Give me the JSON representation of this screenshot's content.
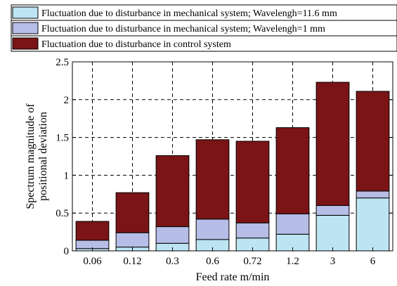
{
  "chart_data": {
    "type": "bar",
    "stacked": true,
    "categories": [
      "0.06",
      "0.12",
      "0.3",
      "0.6",
      "0.72",
      "1.2",
      "3",
      "6"
    ],
    "series": [
      {
        "name": "Fluctuation due to disturbance in mechanical system; Wavelengh=11.6 mm",
        "color": "#bde4f2",
        "values": [
          0.03,
          0.05,
          0.1,
          0.15,
          0.17,
          0.22,
          0.47,
          0.7
        ]
      },
      {
        "name": "Fluctuation due to disturbance in mechanical system; Wavelengh=1 mm",
        "color": "#b6bde6",
        "values": [
          0.11,
          0.19,
          0.22,
          0.27,
          0.2,
          0.27,
          0.13,
          0.09
        ]
      },
      {
        "name": "Fluctuation due to disturbance in control system",
        "color": "#7a1416",
        "values": [
          0.25,
          0.53,
          0.94,
          1.05,
          1.08,
          1.14,
          1.63,
          1.32
        ]
      }
    ],
    "xlabel": "Feed rate m/min",
    "ylabel": [
      "Spectrum magnitude of",
      "positional deviation"
    ],
    "ylim": [
      0,
      2.5
    ],
    "yticks": [
      "0",
      "0.5",
      "1",
      "1.5",
      "2",
      "2.5"
    ],
    "grid": true,
    "grid_style": "dashed",
    "legend_position": "top"
  }
}
